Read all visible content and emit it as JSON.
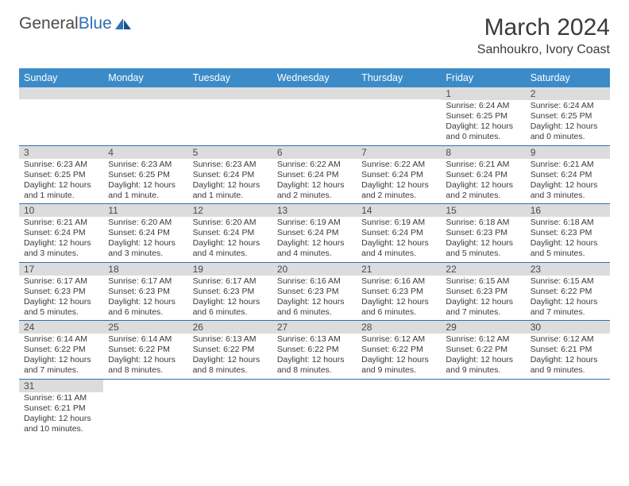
{
  "logo": {
    "part1": "General",
    "part2": "Blue"
  },
  "title": "March 2024",
  "location": "Sanhoukro, Ivory Coast",
  "colors": {
    "header_bg": "#3b8bc9",
    "header_text": "#ffffff",
    "daynum_bg": "#dcdcdc",
    "border": "#2d6fb5",
    "text": "#3a3a3a"
  },
  "weekdays": [
    "Sunday",
    "Monday",
    "Tuesday",
    "Wednesday",
    "Thursday",
    "Friday",
    "Saturday"
  ],
  "weeks": [
    [
      null,
      null,
      null,
      null,
      null,
      {
        "n": "1",
        "l1": "Sunrise: 6:24 AM",
        "l2": "Sunset: 6:25 PM",
        "l3": "Daylight: 12 hours",
        "l4": "and 0 minutes."
      },
      {
        "n": "2",
        "l1": "Sunrise: 6:24 AM",
        "l2": "Sunset: 6:25 PM",
        "l3": "Daylight: 12 hours",
        "l4": "and 0 minutes."
      }
    ],
    [
      {
        "n": "3",
        "l1": "Sunrise: 6:23 AM",
        "l2": "Sunset: 6:25 PM",
        "l3": "Daylight: 12 hours",
        "l4": "and 1 minute."
      },
      {
        "n": "4",
        "l1": "Sunrise: 6:23 AM",
        "l2": "Sunset: 6:25 PM",
        "l3": "Daylight: 12 hours",
        "l4": "and 1 minute."
      },
      {
        "n": "5",
        "l1": "Sunrise: 6:23 AM",
        "l2": "Sunset: 6:24 PM",
        "l3": "Daylight: 12 hours",
        "l4": "and 1 minute."
      },
      {
        "n": "6",
        "l1": "Sunrise: 6:22 AM",
        "l2": "Sunset: 6:24 PM",
        "l3": "Daylight: 12 hours",
        "l4": "and 2 minutes."
      },
      {
        "n": "7",
        "l1": "Sunrise: 6:22 AM",
        "l2": "Sunset: 6:24 PM",
        "l3": "Daylight: 12 hours",
        "l4": "and 2 minutes."
      },
      {
        "n": "8",
        "l1": "Sunrise: 6:21 AM",
        "l2": "Sunset: 6:24 PM",
        "l3": "Daylight: 12 hours",
        "l4": "and 2 minutes."
      },
      {
        "n": "9",
        "l1": "Sunrise: 6:21 AM",
        "l2": "Sunset: 6:24 PM",
        "l3": "Daylight: 12 hours",
        "l4": "and 3 minutes."
      }
    ],
    [
      {
        "n": "10",
        "l1": "Sunrise: 6:21 AM",
        "l2": "Sunset: 6:24 PM",
        "l3": "Daylight: 12 hours",
        "l4": "and 3 minutes."
      },
      {
        "n": "11",
        "l1": "Sunrise: 6:20 AM",
        "l2": "Sunset: 6:24 PM",
        "l3": "Daylight: 12 hours",
        "l4": "and 3 minutes."
      },
      {
        "n": "12",
        "l1": "Sunrise: 6:20 AM",
        "l2": "Sunset: 6:24 PM",
        "l3": "Daylight: 12 hours",
        "l4": "and 4 minutes."
      },
      {
        "n": "13",
        "l1": "Sunrise: 6:19 AM",
        "l2": "Sunset: 6:24 PM",
        "l3": "Daylight: 12 hours",
        "l4": "and 4 minutes."
      },
      {
        "n": "14",
        "l1": "Sunrise: 6:19 AM",
        "l2": "Sunset: 6:24 PM",
        "l3": "Daylight: 12 hours",
        "l4": "and 4 minutes."
      },
      {
        "n": "15",
        "l1": "Sunrise: 6:18 AM",
        "l2": "Sunset: 6:23 PM",
        "l3": "Daylight: 12 hours",
        "l4": "and 5 minutes."
      },
      {
        "n": "16",
        "l1": "Sunrise: 6:18 AM",
        "l2": "Sunset: 6:23 PM",
        "l3": "Daylight: 12 hours",
        "l4": "and 5 minutes."
      }
    ],
    [
      {
        "n": "17",
        "l1": "Sunrise: 6:17 AM",
        "l2": "Sunset: 6:23 PM",
        "l3": "Daylight: 12 hours",
        "l4": "and 5 minutes."
      },
      {
        "n": "18",
        "l1": "Sunrise: 6:17 AM",
        "l2": "Sunset: 6:23 PM",
        "l3": "Daylight: 12 hours",
        "l4": "and 6 minutes."
      },
      {
        "n": "19",
        "l1": "Sunrise: 6:17 AM",
        "l2": "Sunset: 6:23 PM",
        "l3": "Daylight: 12 hours",
        "l4": "and 6 minutes."
      },
      {
        "n": "20",
        "l1": "Sunrise: 6:16 AM",
        "l2": "Sunset: 6:23 PM",
        "l3": "Daylight: 12 hours",
        "l4": "and 6 minutes."
      },
      {
        "n": "21",
        "l1": "Sunrise: 6:16 AM",
        "l2": "Sunset: 6:23 PM",
        "l3": "Daylight: 12 hours",
        "l4": "and 6 minutes."
      },
      {
        "n": "22",
        "l1": "Sunrise: 6:15 AM",
        "l2": "Sunset: 6:23 PM",
        "l3": "Daylight: 12 hours",
        "l4": "and 7 minutes."
      },
      {
        "n": "23",
        "l1": "Sunrise: 6:15 AM",
        "l2": "Sunset: 6:22 PM",
        "l3": "Daylight: 12 hours",
        "l4": "and 7 minutes."
      }
    ],
    [
      {
        "n": "24",
        "l1": "Sunrise: 6:14 AM",
        "l2": "Sunset: 6:22 PM",
        "l3": "Daylight: 12 hours",
        "l4": "and 7 minutes."
      },
      {
        "n": "25",
        "l1": "Sunrise: 6:14 AM",
        "l2": "Sunset: 6:22 PM",
        "l3": "Daylight: 12 hours",
        "l4": "and 8 minutes."
      },
      {
        "n": "26",
        "l1": "Sunrise: 6:13 AM",
        "l2": "Sunset: 6:22 PM",
        "l3": "Daylight: 12 hours",
        "l4": "and 8 minutes."
      },
      {
        "n": "27",
        "l1": "Sunrise: 6:13 AM",
        "l2": "Sunset: 6:22 PM",
        "l3": "Daylight: 12 hours",
        "l4": "and 8 minutes."
      },
      {
        "n": "28",
        "l1": "Sunrise: 6:12 AM",
        "l2": "Sunset: 6:22 PM",
        "l3": "Daylight: 12 hours",
        "l4": "and 9 minutes."
      },
      {
        "n": "29",
        "l1": "Sunrise: 6:12 AM",
        "l2": "Sunset: 6:22 PM",
        "l3": "Daylight: 12 hours",
        "l4": "and 9 minutes."
      },
      {
        "n": "30",
        "l1": "Sunrise: 6:12 AM",
        "l2": "Sunset: 6:21 PM",
        "l3": "Daylight: 12 hours",
        "l4": "and 9 minutes."
      }
    ],
    [
      {
        "n": "31",
        "l1": "Sunrise: 6:11 AM",
        "l2": "Sunset: 6:21 PM",
        "l3": "Daylight: 12 hours",
        "l4": "and 10 minutes."
      },
      null,
      null,
      null,
      null,
      null,
      null
    ]
  ]
}
